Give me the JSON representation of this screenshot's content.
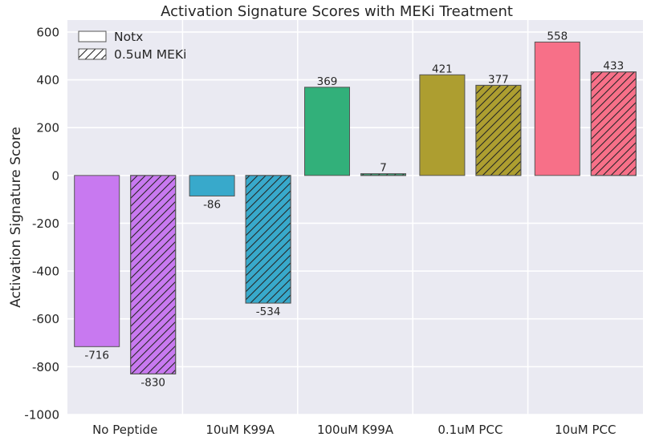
{
  "chart_data": {
    "type": "bar",
    "title": "Activation Signature Scores with MEKi Treatment",
    "xlabel": "",
    "ylabel": "Activation Signature Score",
    "ylim": [
      -1000,
      650
    ],
    "yticks": [
      -1000,
      -800,
      -600,
      -400,
      -200,
      0,
      200,
      400,
      600
    ],
    "grid": true,
    "legend_position": "top-left",
    "categories": [
      "No Peptide",
      "10uM K99A",
      "100uM K99A",
      "0.1uM PCC",
      "10uM PCC"
    ],
    "category_colors": [
      "#c879f0",
      "#38a9cb",
      "#32b07a",
      "#ad9e30",
      "#f77088"
    ],
    "series": [
      {
        "name": "Notx",
        "pattern": "solid",
        "values": [
          -716,
          -86,
          369,
          421,
          558
        ]
      },
      {
        "name": "0.5uM MEKi",
        "pattern": "hatched",
        "values": [
          -830,
          -534,
          7,
          377,
          433
        ]
      }
    ],
    "colors": {
      "background": "#eaeaf2",
      "grid": "#ffffff",
      "bar_edge": "#555555",
      "text": "#262626"
    }
  }
}
